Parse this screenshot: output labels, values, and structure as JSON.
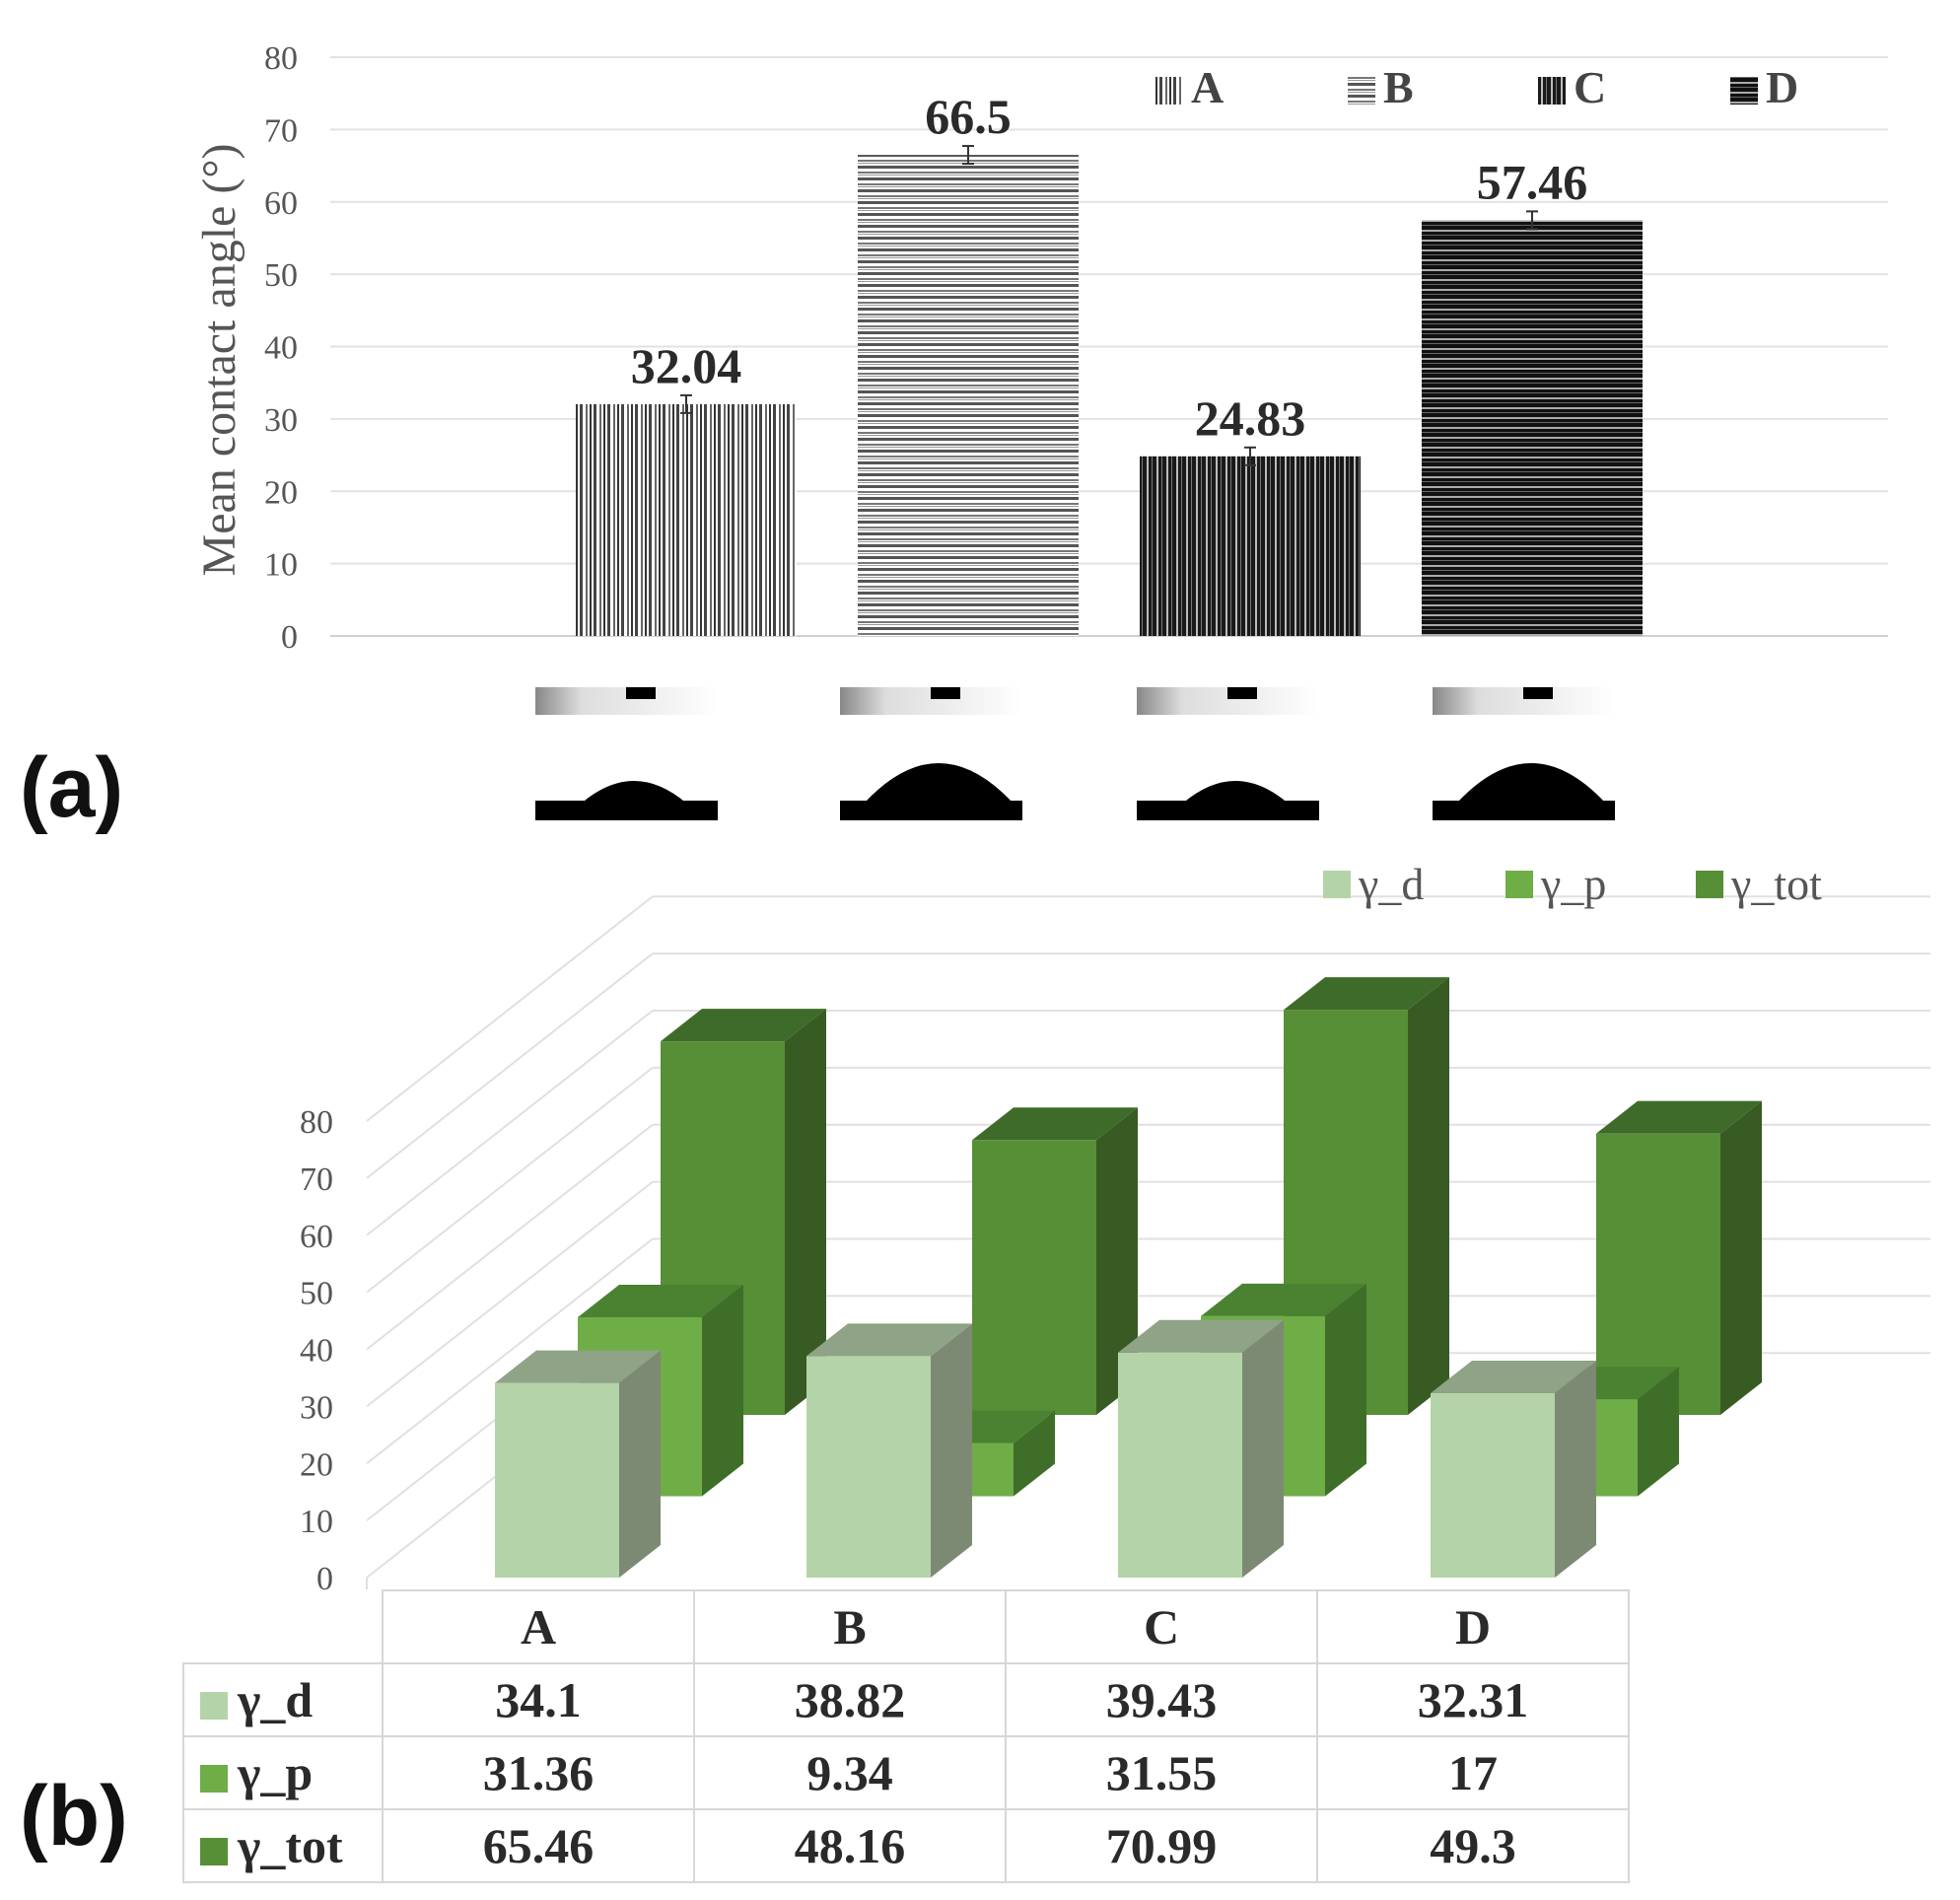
{
  "chart_data": [
    {
      "type": "bar",
      "panel_label": "(a)",
      "ylabel": "Mean contact angle (°)",
      "ylim": [
        0,
        80
      ],
      "yticks": [
        0,
        10,
        20,
        30,
        40,
        50,
        60,
        70,
        80
      ],
      "series": [
        {
          "name": "A",
          "value": 32.04,
          "label": "32.04",
          "color": "#4a4a4a",
          "pattern": "vertical-light"
        },
        {
          "name": "B",
          "value": 66.5,
          "label": "66.5",
          "color": "#5a5a5a",
          "pattern": "horizontal-light"
        },
        {
          "name": "C",
          "value": 24.83,
          "label": "24.83",
          "color": "#1e1e1e",
          "pattern": "vertical-dark"
        },
        {
          "name": "D",
          "value": 57.46,
          "label": "57.46",
          "color": "#141414",
          "pattern": "horizontal-dark"
        }
      ],
      "legend": [
        "A",
        "B",
        "C",
        "D"
      ],
      "grid": true,
      "legend_position": "top-right",
      "droplet_images": [
        "A",
        "B",
        "C",
        "D"
      ]
    },
    {
      "type": "bar3d",
      "panel_label": "(b)",
      "categories": [
        "A",
        "B",
        "C",
        "D"
      ],
      "series": [
        {
          "name": "γ_d",
          "values": [
            34.1,
            38.82,
            39.43,
            32.31
          ],
          "color": "#b5d3a8",
          "side": "#7c8a73",
          "top": "#8fa386"
        },
        {
          "name": "γ_p",
          "values": [
            31.36,
            9.34,
            31.55,
            17
          ],
          "color": "#6fad47",
          "side": "#3f6e28",
          "top": "#4b8232"
        },
        {
          "name": "γ_tot",
          "values": [
            65.46,
            48.16,
            70.99,
            49.3
          ],
          "color": "#578f37",
          "side": "#385b23",
          "top": "#3f6b2a"
        }
      ],
      "yticks": [
        0,
        10,
        20,
        30,
        40,
        50,
        60,
        70,
        80
      ],
      "ylim": [
        0,
        80
      ],
      "legend": [
        "γ_d",
        "γ_p",
        "γ_tot"
      ],
      "legend_position": "top-right",
      "data_table": {
        "header": [
          "A",
          "B",
          "C",
          "D"
        ],
        "rows": [
          {
            "label": "γ_d",
            "cells": [
              "34.1",
              "38.82",
              "39.43",
              "32.31"
            ]
          },
          {
            "label": "γ_p",
            "cells": [
              "31.36",
              "9.34",
              "31.55",
              "17"
            ]
          },
          {
            "label": "γ_tot",
            "cells": [
              "65.46",
              "48.16",
              "70.99",
              "49.3"
            ]
          }
        ]
      }
    }
  ]
}
